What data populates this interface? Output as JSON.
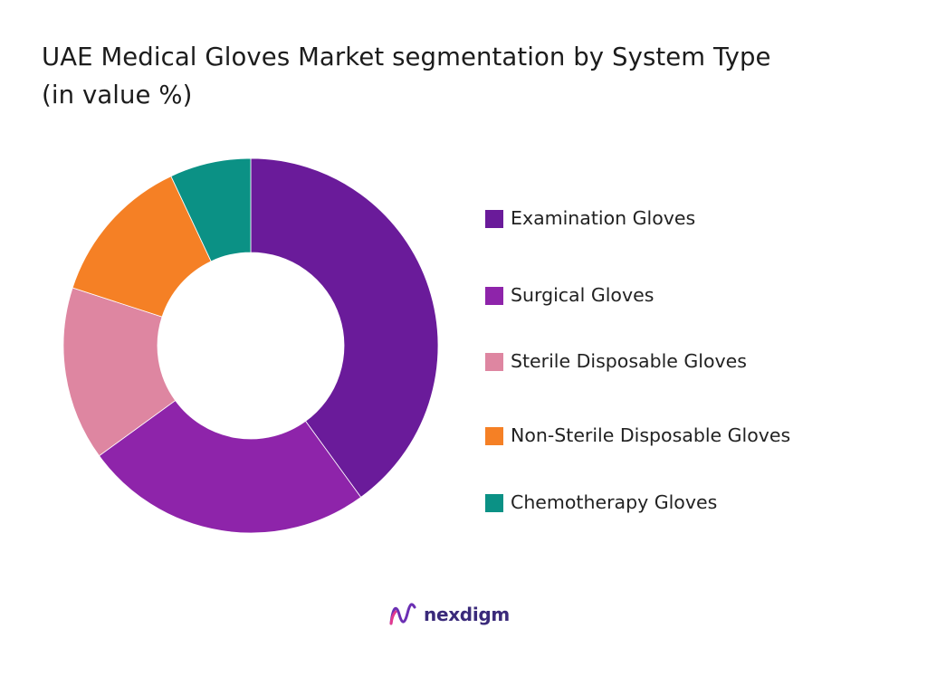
{
  "title_line1": "UAE Medical Gloves Market segmentation by System Type",
  "title_line2": "(in value %)",
  "chart_data": {
    "type": "pie",
    "donut": true,
    "title": "UAE Medical Gloves Market segmentation by System Type (in value %)",
    "legend_position": "right",
    "series": [
      {
        "name": "Examination Gloves",
        "value": 40,
        "color": "#6a1b9a"
      },
      {
        "name": "Surgical Gloves",
        "value": 25,
        "color": "#8e24aa"
      },
      {
        "name": "Sterile Disposable Gloves",
        "value": 15,
        "color": "#de86a1"
      },
      {
        "name": "Non-Sterile Disposable Gloves",
        "value": 13,
        "color": "#f58025"
      },
      {
        "name": "Chemotherapy Gloves",
        "value": 7,
        "color": "#0b9185"
      }
    ]
  },
  "brand": {
    "name": "nexdigm",
    "logo_icon": "nexdigm-wave-logo",
    "logo_color": "#6b2fb3"
  }
}
